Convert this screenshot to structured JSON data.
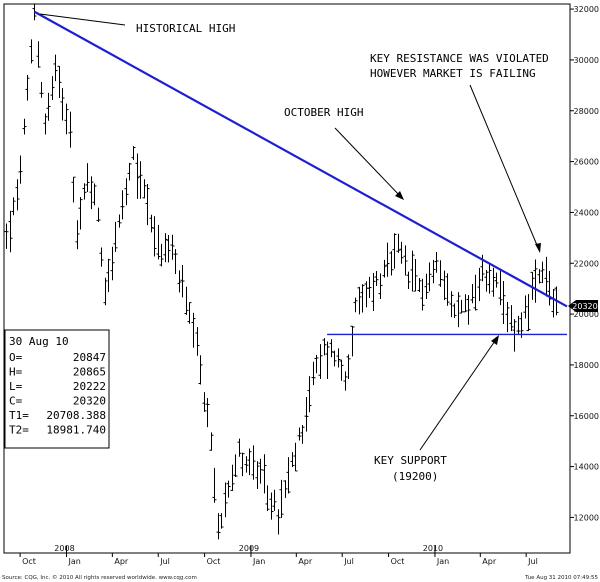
{
  "chart_data": {
    "type": "bar",
    "style": "ohlc-weekly",
    "y_ticks": [
      12000,
      14000,
      16000,
      18000,
      20000,
      22000,
      24000,
      26000,
      28000,
      30000,
      32000
    ],
    "ylim": [
      10600,
      32200
    ],
    "x_month_labels": [
      {
        "label": "Oct",
        "date": "2007-10"
      },
      {
        "label": "Jan",
        "date": "2008-01"
      },
      {
        "label": "Apr",
        "date": "2008-04"
      },
      {
        "label": "Jul",
        "date": "2008-07"
      },
      {
        "label": "Oct",
        "date": "2008-10"
      },
      {
        "label": "Jan",
        "date": "2009-01"
      },
      {
        "label": "Apr",
        "date": "2009-04"
      },
      {
        "label": "Jul",
        "date": "2009-07"
      },
      {
        "label": "Oct",
        "date": "2009-10"
      },
      {
        "label": "Jan",
        "date": "2010-01"
      },
      {
        "label": "Apr",
        "date": "2010-04"
      },
      {
        "label": "Jul",
        "date": "2010-07"
      }
    ],
    "x_year_labels": [
      {
        "label": "2008",
        "date": "2008-01"
      },
      {
        "label": "2009",
        "date": "2009-01"
      },
      {
        "label": "2010",
        "date": "2010-01"
      }
    ],
    "path_points": [
      {
        "date": "2007-09-03",
        "value": 23000
      },
      {
        "date": "2007-09-24",
        "value": 24500
      },
      {
        "date": "2007-10-15",
        "value": 28500
      },
      {
        "date": "2007-10-29",
        "value": 31800
      },
      {
        "date": "2007-11-19",
        "value": 27500
      },
      {
        "date": "2007-12-10",
        "value": 29500
      },
      {
        "date": "2008-01-07",
        "value": 27500
      },
      {
        "date": "2008-01-21",
        "value": 23000
      },
      {
        "date": "2008-02-11",
        "value": 25500
      },
      {
        "date": "2008-03-03",
        "value": 24000
      },
      {
        "date": "2008-03-17",
        "value": 21000
      },
      {
        "date": "2008-04-14",
        "value": 23500
      },
      {
        "date": "2008-05-12",
        "value": 26000
      },
      {
        "date": "2008-06-09",
        "value": 24500
      },
      {
        "date": "2008-06-30",
        "value": 22500
      },
      {
        "date": "2008-07-28",
        "value": 22500
      },
      {
        "date": "2008-08-18",
        "value": 21000
      },
      {
        "date": "2008-09-15",
        "value": 18500
      },
      {
        "date": "2008-10-13",
        "value": 15000
      },
      {
        "date": "2008-10-27",
        "value": 11500
      },
      {
        "date": "2008-11-17",
        "value": 13500
      },
      {
        "date": "2008-12-08",
        "value": 14500
      },
      {
        "date": "2009-01-05",
        "value": 14000
      },
      {
        "date": "2009-02-02",
        "value": 13000
      },
      {
        "date": "2009-02-23",
        "value": 12000
      },
      {
        "date": "2009-03-16",
        "value": 13500
      },
      {
        "date": "2009-04-06",
        "value": 15000
      },
      {
        "date": "2009-05-04",
        "value": 17500
      },
      {
        "date": "2009-05-25",
        "value": 18500
      },
      {
        "date": "2009-06-15",
        "value": 18500
      },
      {
        "date": "2009-07-06",
        "value": 17500
      },
      {
        "date": "2009-07-27",
        "value": 20000
      },
      {
        "date": "2009-08-24",
        "value": 21000
      },
      {
        "date": "2009-09-21",
        "value": 21500
      },
      {
        "date": "2009-10-19",
        "value": 22500
      },
      {
        "date": "2009-11-09",
        "value": 21500
      },
      {
        "date": "2009-12-07",
        "value": 21000
      },
      {
        "date": "2010-01-11",
        "value": 22000
      },
      {
        "date": "2010-02-08",
        "value": 20000
      },
      {
        "date": "2010-03-08",
        "value": 20500
      },
      {
        "date": "2010-04-05",
        "value": 21500
      },
      {
        "date": "2010-04-26",
        "value": 21500
      },
      {
        "date": "2010-05-24",
        "value": 19800
      },
      {
        "date": "2010-06-14",
        "value": 19500
      },
      {
        "date": "2010-07-12",
        "value": 20800
      },
      {
        "date": "2010-08-02",
        "value": 21500
      },
      {
        "date": "2010-08-30",
        "value": 20320
      }
    ],
    "trendline": {
      "start": {
        "date": "2007-10-29",
        "value": 31900
      },
      "end": {
        "date": "2010-09-20",
        "value": 20300
      },
      "color": "#1f1fd2"
    },
    "support_line": {
      "value": 19200,
      "from": "2009-06-01",
      "to": "2010-09-20",
      "color": "#1f1fd2"
    },
    "last_price_marker": "20320",
    "annotations": {
      "historical_high": "HISTORICAL HIGH",
      "october_high": "OCTOBER HIGH",
      "resistance_line1": "KEY RESISTANCE WAS VIOLATED",
      "resistance_line2": "HOWEVER MARKET IS FAILING",
      "support_line1": "KEY SUPPORT",
      "support_line2": "(19200)"
    },
    "info_box": {
      "date": "30 Aug 10",
      "rows": [
        {
          "label": "O=",
          "value": "20847"
        },
        {
          "label": "H=",
          "value": "20865"
        },
        {
          "label": "L=",
          "value": "20222"
        },
        {
          "label": "C=",
          "value": "20320"
        },
        {
          "label": "T1=",
          "value": "20708.388"
        },
        {
          "label": "T2=",
          "value": "18981.740"
        }
      ]
    }
  },
  "footer": {
    "left": "Source: CQG, Inc. © 2010 All rights reserved worldwide. www.cqg.com",
    "right": "Tue Aug 31 2010 07:49:55"
  }
}
